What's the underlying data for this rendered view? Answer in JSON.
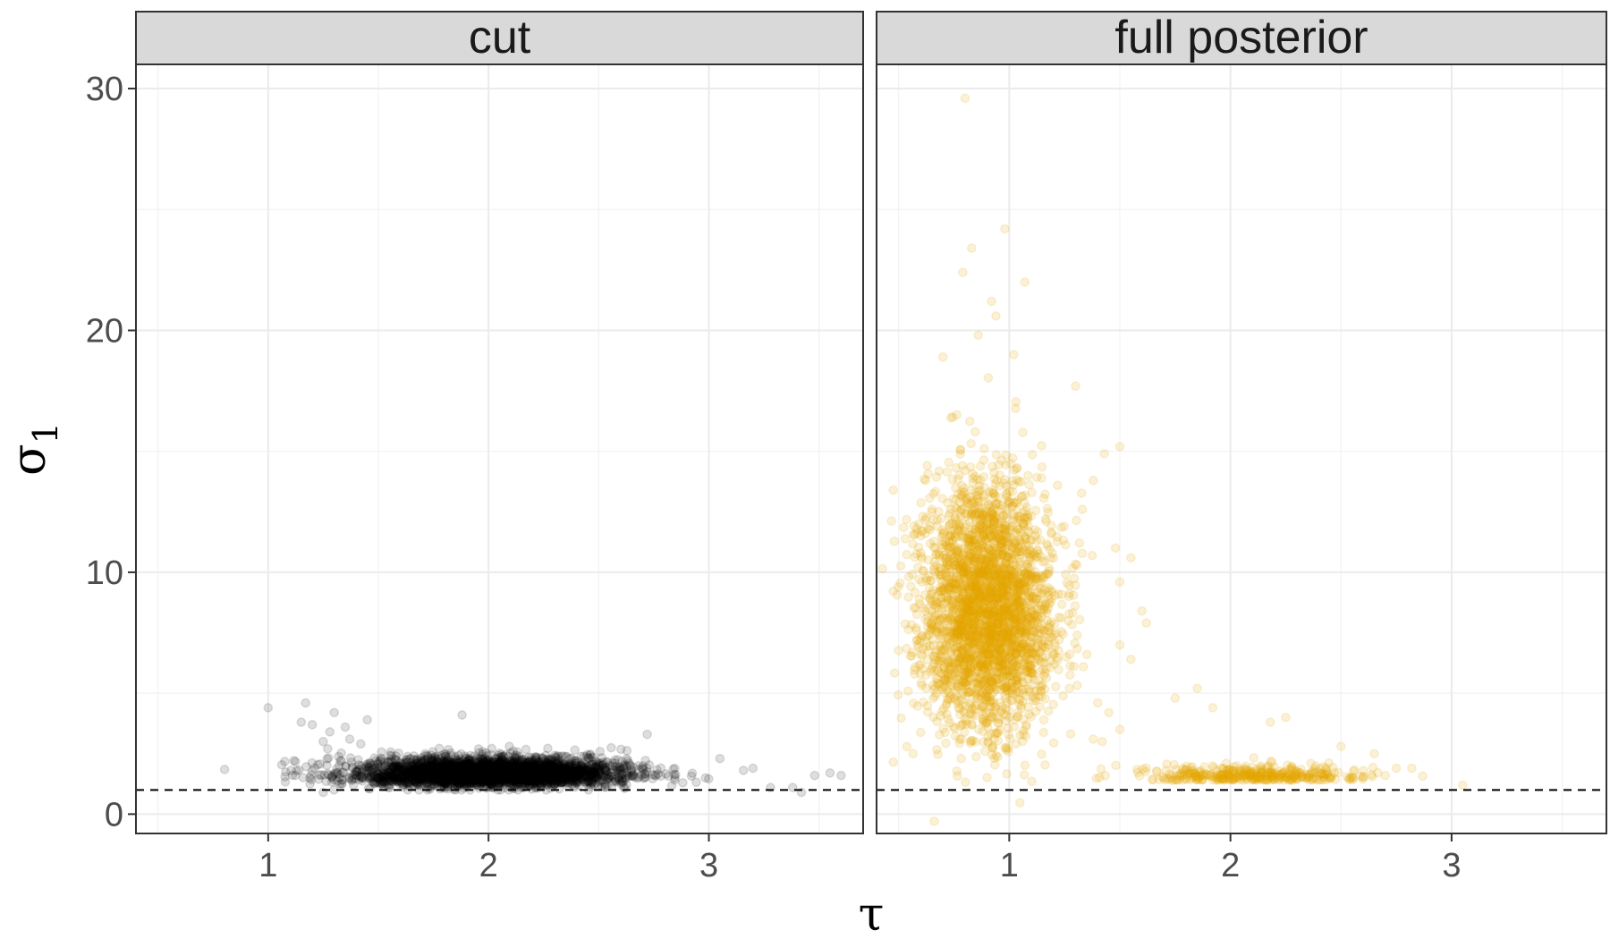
{
  "chart_data": {
    "type": "scatter",
    "facet_by": "panel",
    "xlabel": "τ",
    "ylabel": "σ",
    "ylabel_subscript": "1",
    "x_ticks": [
      1,
      2,
      3
    ],
    "y_ticks": [
      0,
      10,
      20,
      30
    ],
    "xlim": [
      0.4,
      3.7
    ],
    "ylim": [
      -0.8,
      31
    ],
    "grid": true,
    "reference_line": {
      "y": 1,
      "style": "dashed"
    },
    "panels": [
      {
        "title": "cut",
        "color": "#000000",
        "point_alpha": 0.13,
        "summary": {
          "tau_center": 2.0,
          "tau_spread": 0.3,
          "sigma_center": 1.6,
          "sigma_spread": 0.4,
          "n_points": 3500
        },
        "notable_points": [
          [
            1.0,
            4.4
          ],
          [
            1.17,
            4.6
          ],
          [
            1.3,
            4.2
          ],
          [
            1.15,
            3.8
          ],
          [
            1.2,
            3.7
          ],
          [
            1.28,
            3.4
          ],
          [
            1.25,
            3.0
          ],
          [
            1.27,
            2.7
          ],
          [
            1.35,
            3.6
          ],
          [
            1.37,
            3.1
          ],
          [
            1.45,
            3.9
          ],
          [
            1.42,
            2.9
          ],
          [
            1.88,
            4.1
          ],
          [
            2.72,
            3.3
          ],
          [
            3.2,
            1.9
          ],
          [
            3.28,
            1.1
          ],
          [
            3.38,
            1.1
          ],
          [
            3.48,
            1.6
          ],
          [
            3.55,
            1.7
          ],
          [
            3.6,
            1.6
          ],
          [
            3.42,
            0.9
          ],
          [
            1.25,
            0.9
          ],
          [
            3.05,
            2.3
          ]
        ]
      },
      {
        "title": "full posterior",
        "color": "#E6A800",
        "point_alpha": 0.16,
        "summary": {
          "tau_center": 0.9,
          "tau_spread": 0.15,
          "sigma_center": 8.5,
          "sigma_spread": 2.5,
          "n_points": 3000,
          "secondary_cluster": {
            "tau_center": 2.1,
            "sigma_center": 1.4,
            "n_points": 400
          }
        },
        "notable_points": [
          [
            0.8,
            29.6
          ],
          [
            0.98,
            24.2
          ],
          [
            0.79,
            22.4
          ],
          [
            0.83,
            23.4
          ],
          [
            1.07,
            22.0
          ],
          [
            0.92,
            21.2
          ],
          [
            0.94,
            20.6
          ],
          [
            0.86,
            19.8
          ],
          [
            0.7,
            18.9
          ],
          [
            1.02,
            19.0
          ],
          [
            1.3,
            17.7
          ],
          [
            1.5,
            15.2
          ],
          [
            1.43,
            14.9
          ],
          [
            1.38,
            13.8
          ],
          [
            1.33,
            12.6
          ],
          [
            1.48,
            11.0
          ],
          [
            1.55,
            10.6
          ],
          [
            1.5,
            9.6
          ],
          [
            1.6,
            8.4
          ],
          [
            1.62,
            7.9
          ],
          [
            1.5,
            7.0
          ],
          [
            1.55,
            6.4
          ],
          [
            1.4,
            4.6
          ],
          [
            1.45,
            4.2
          ],
          [
            1.5,
            3.5
          ],
          [
            1.38,
            3.1
          ],
          [
            1.42,
            3.0
          ],
          [
            1.75,
            4.8
          ],
          [
            1.85,
            5.2
          ],
          [
            1.92,
            4.4
          ],
          [
            2.25,
            4.0
          ],
          [
            2.18,
            3.8
          ],
          [
            2.5,
            2.8
          ],
          [
            2.75,
            1.9
          ],
          [
            2.82,
            1.9
          ],
          [
            2.65,
            2.5
          ],
          [
            2.7,
            1.6
          ],
          [
            3.05,
            1.2
          ],
          [
            0.65,
            12.5
          ],
          [
            0.62,
            11.6
          ],
          [
            0.6,
            10.8
          ]
        ]
      }
    ]
  }
}
